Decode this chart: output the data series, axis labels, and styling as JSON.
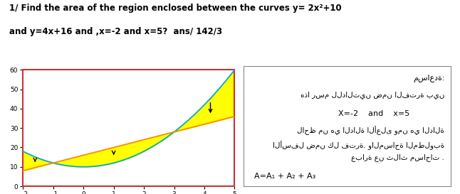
{
  "x_min": -2,
  "x_max": 5,
  "y_min": 0,
  "y_max": 60,
  "intersections": [
    -1,
    3
  ],
  "title_line1": "1/ Find the area of the region enclosed between the curves y= 2x²+10",
  "title_line2": "and y=4x+16 and ,x=-2 and x=5?  ans/ 142/3",
  "plot_border_color": "#cc3333",
  "parabola_color": "#00aacc",
  "line_color": "#ff8800",
  "fill_color": "#ffff00",
  "fill_alpha": 1.0,
  "xticks": [
    -2,
    -1,
    0,
    1,
    2,
    3,
    4,
    5
  ],
  "yticks": [
    0,
    10,
    20,
    30,
    40,
    50,
    60
  ],
  "help_title": "مساعدة:",
  "arabic_line1": "هذا رسم للدالتين ضمن الفترة بين",
  "arabic_line2": "X=-2    and    x=5",
  "arabic_line3": "لاحظ من هي الدالة الأعلى ومن هي الدالة",
  "arabic_line4": "الأسفل ضمن كل فترة. والمساحة المطلوبة",
  "arabic_line5": "عبارة عن ثلاث مساحات .",
  "arabic_formula": "A=A₁ + A₂ + A₃"
}
